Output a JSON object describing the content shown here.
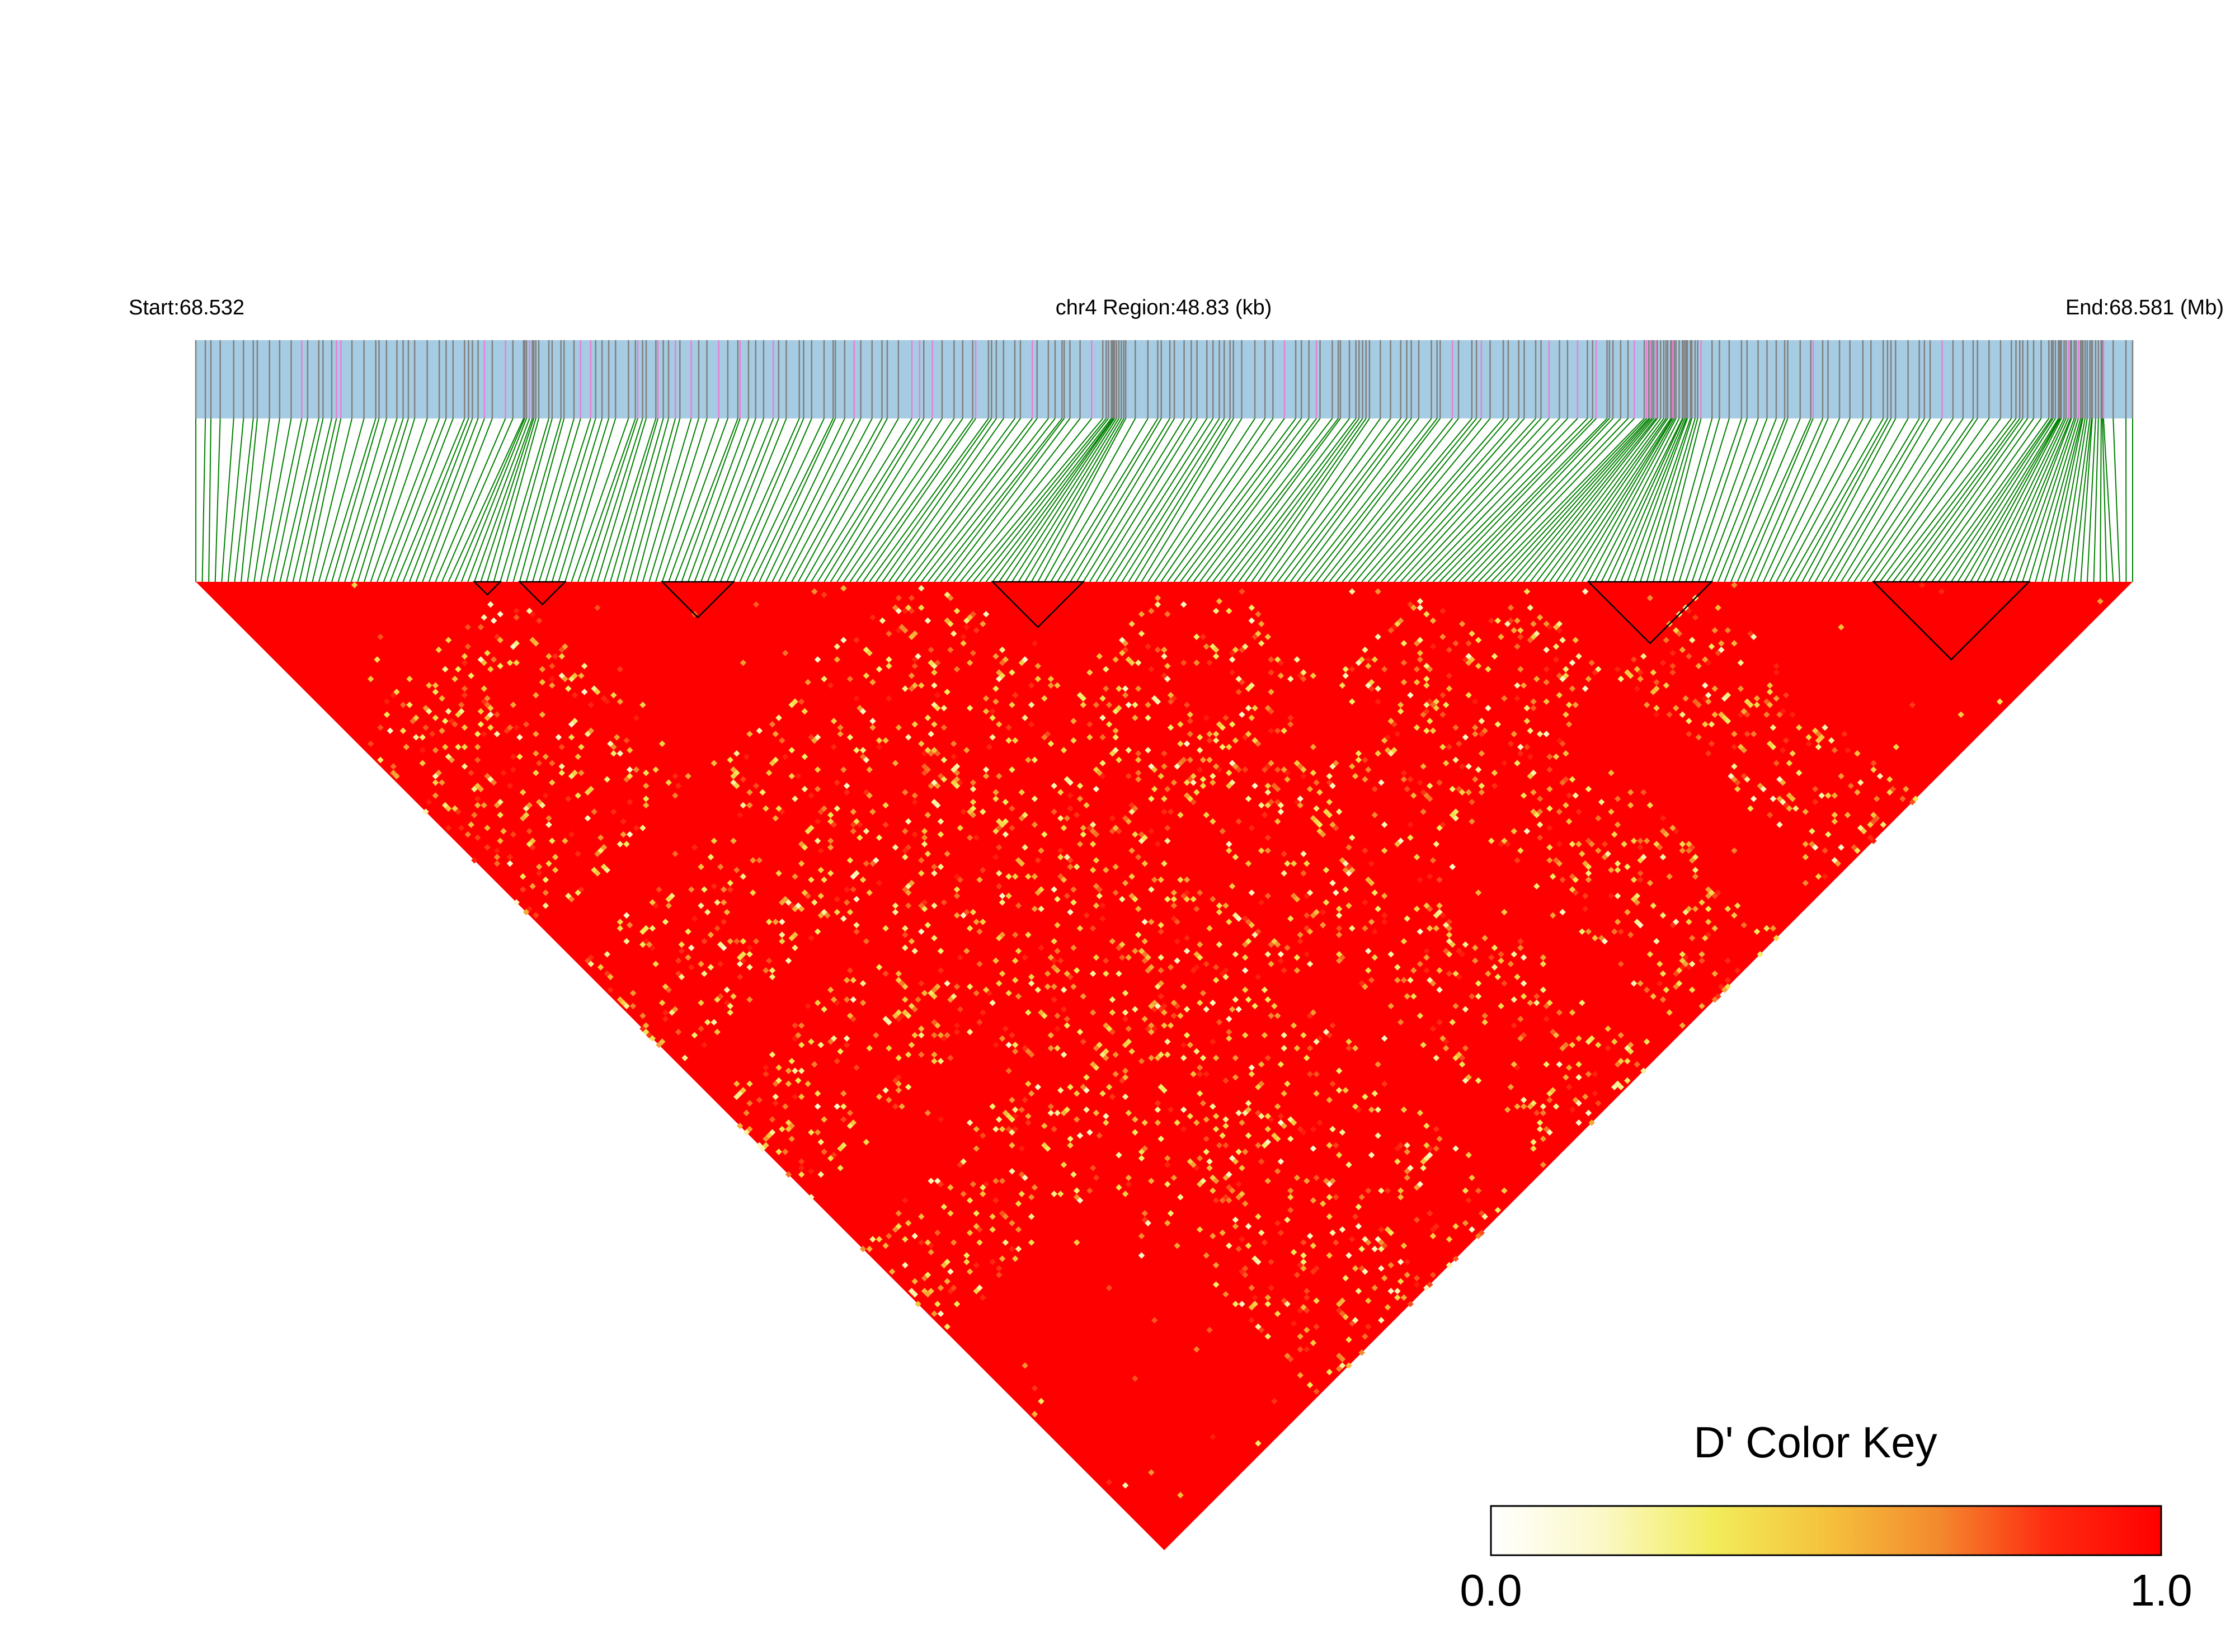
{
  "header": {
    "start_label": "Start:68.532",
    "region_label": "chr4 Region:48.83 (kb)",
    "end_label": "End:68.581 (Mb)"
  },
  "chart_data": {
    "type": "heatmap",
    "title": "",
    "chromosome": "chr4",
    "start_mb": 68.532,
    "end_mb": 68.581,
    "region_kb": 48.83,
    "metric": "D'",
    "value_range": [
      0.0,
      1.0
    ],
    "dominant_value": 1.0,
    "snp_count": 300,
    "colors": {
      "snp_track_bg": "#a6cce3",
      "snp_tick": "#808080",
      "snp_tick_highlight": "#e77fd6",
      "connector": "#008000",
      "strong_ld": "#ff0000",
      "mid_ld": "#f2e640",
      "low_ld": "#ffffff"
    },
    "color_key": {
      "title": "D' Color Key",
      "min_label": "0.0",
      "max_label": "1.0",
      "stops": [
        "#ffffff",
        "#fbf8c6",
        "#f2ec5a",
        "#f5c23c",
        "#f38a2e",
        "#ff2a10",
        "#ff0000"
      ]
    }
  }
}
